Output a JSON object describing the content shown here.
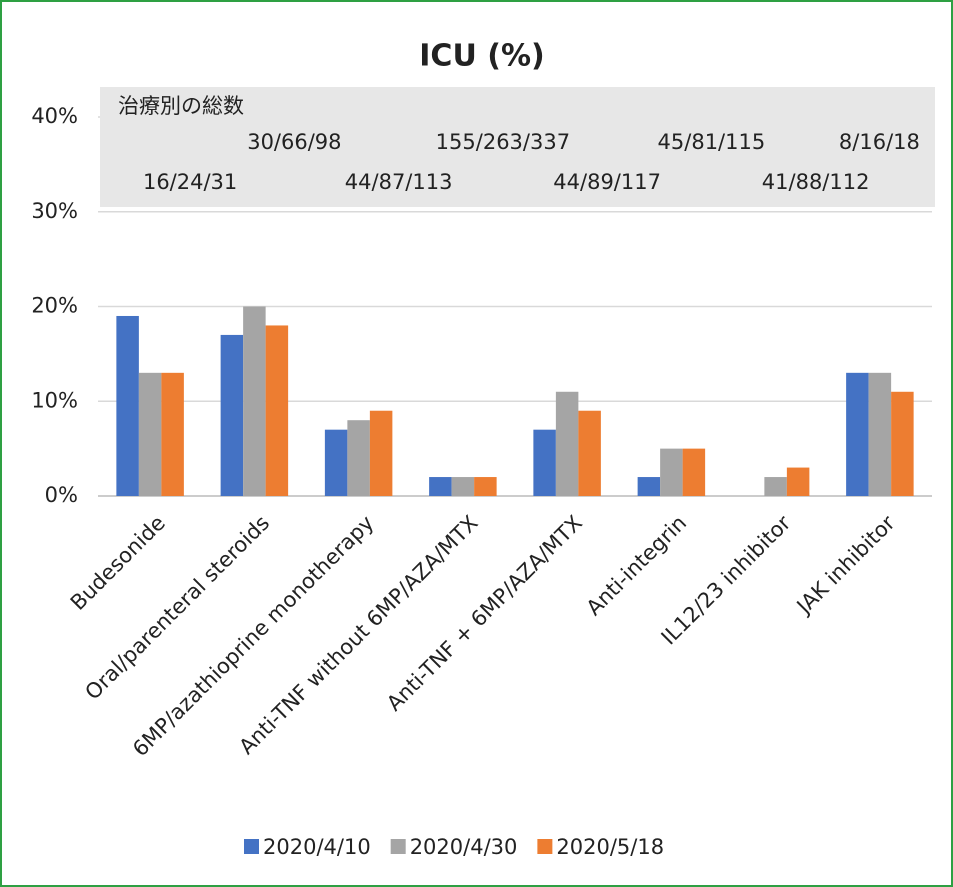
{
  "chart_data": {
    "type": "bar",
    "title": "ICU (%)",
    "categories": [
      "Budesonide",
      "Oral/parenteral steroids",
      "6MP/azathioprine monotherapy",
      "Anti-TNF without 6MP/AZA/MTX",
      "Anti-TNF + 6MP/AZA/MTX",
      "Anti-integrin",
      "IL12/23 inhibitor",
      "JAK inhibitor"
    ],
    "series": [
      {
        "name": "2020/4/10",
        "color": "#4472c4",
        "values": [
          19,
          17,
          7,
          2,
          7,
          2,
          0,
          13
        ]
      },
      {
        "name": "2020/4/30",
        "color": "#a5a5a5",
        "values": [
          13,
          20,
          8,
          2,
          11,
          5,
          2,
          13
        ]
      },
      {
        "name": "2020/5/18",
        "color": "#ed7d31",
        "values": [
          13,
          18,
          9,
          2,
          9,
          5,
          3,
          11
        ]
      }
    ],
    "ylim": [
      0,
      40
    ],
    "yticks": [
      {
        "value": 0,
        "label": "0%"
      },
      {
        "value": 10,
        "label": "10%"
      },
      {
        "value": 20,
        "label": "20%"
      },
      {
        "value": 30,
        "label": "30%"
      },
      {
        "value": 40,
        "label": "40%"
      }
    ],
    "grid": true,
    "legend": "bottom",
    "annotation": {
      "label": "治療別の総数",
      "counts": [
        "16/24/31",
        "30/66/98",
        "44/87/113",
        "155/263/337",
        "44/89/117",
        "45/81/115",
        "41/88/112",
        "8/16/18"
      ]
    }
  }
}
